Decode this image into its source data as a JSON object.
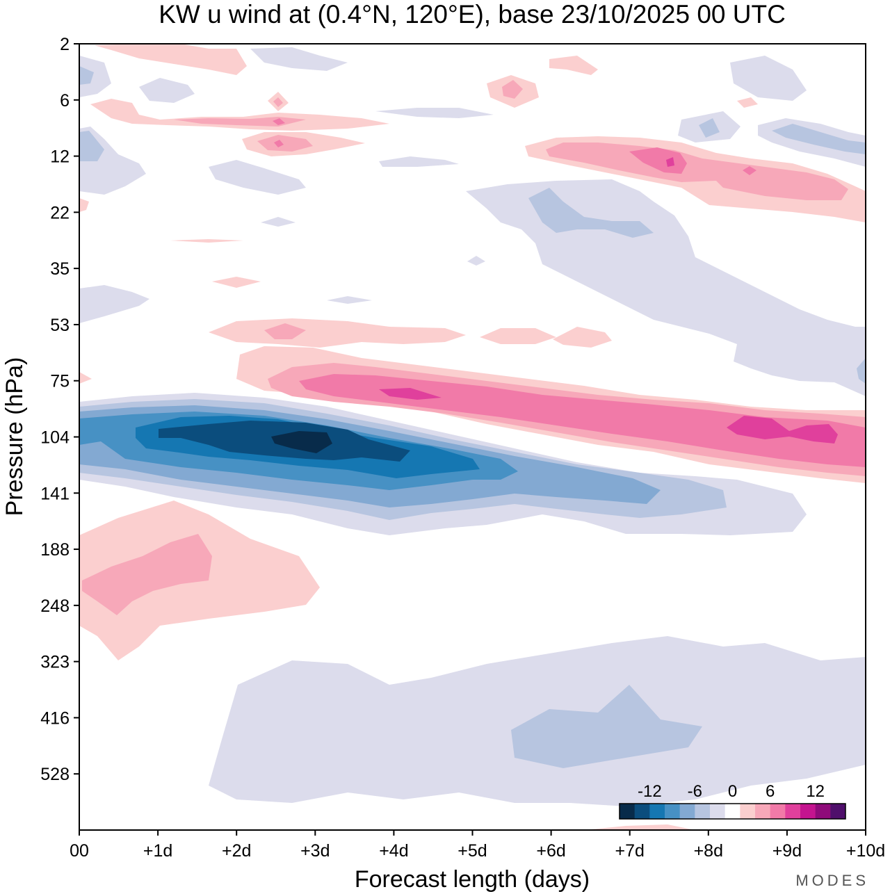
{
  "chart_data": {
    "type": "heatmap",
    "title": "KW u wind at (0.4°N, 120°E),  base 23/10/2025  00 UTC",
    "xlabel": "Forecast length (days)",
    "ylabel": "Pressure (hPa)",
    "x_tick_labels": [
      "00",
      "+1d",
      "+2d",
      "+3d",
      "+4d",
      "+5d",
      "+6d",
      "+7d",
      "+8d",
      "+9d",
      "+10d"
    ],
    "xlim": [
      0,
      10
    ],
    "y_ticks": [
      2,
      6,
      12,
      22,
      35,
      53,
      75,
      104,
      141,
      188,
      248,
      323,
      416,
      528
    ],
    "y_tick_labels": [
      "2",
      "6",
      "12",
      "22",
      "35",
      "53",
      "75",
      "104",
      "141",
      "188",
      "248",
      "323",
      "416",
      "528"
    ],
    "colorbar": {
      "tick_labels": [
        "-12",
        "-6",
        "0",
        "6",
        "12"
      ],
      "tick_values": [
        -12,
        -6,
        0,
        6,
        12
      ],
      "levels": [
        -16,
        -14,
        -12,
        -10,
        -8,
        -6,
        -4,
        -2,
        2,
        4,
        6,
        8,
        10,
        12,
        14,
        16
      ],
      "colors": [
        "#082b4a",
        "#0b4d7d",
        "#1577b2",
        "#4791c4",
        "#83a9d2",
        "#b7c5e0",
        "#dcdcec",
        "#ffffff",
        "#fbcfcf",
        "#f7a8b9",
        "#f17aa8",
        "#e0409c",
        "#c4148f",
        "#8f0b7a",
        "#4f0f6b"
      ]
    },
    "features": [
      {
        "name": "lower-stratosphere easterly core",
        "sign": "negative",
        "days": [
          0,
          8
        ],
        "pressure_hPa": [
          75,
          141
        ],
        "peak_value": -15,
        "peak_day": 3,
        "peak_pressure_hPa": 95
      },
      {
        "name": "lower-stratosphere westerly band",
        "sign": "positive",
        "days": [
          2.5,
          10
        ],
        "pressure_hPa": [
          53,
          125
        ],
        "peak_value": 11,
        "peak_day": 9.3,
        "peak_pressure_hPa": 90
      },
      {
        "name": "upper westerly band",
        "sign": "positive",
        "days": [
          5.5,
          10
        ],
        "pressure_hPa": [
          9,
          22
        ],
        "peak_value": 10,
        "peak_day": 7.5,
        "peak_pressure_hPa": 12
      },
      {
        "name": "upper-tropospheric westerly",
        "sign": "positive",
        "days": [
          0,
          3
        ],
        "pressure_hPa": [
          150,
          280
        ],
        "peak_value": 5,
        "peak_day": 1.5,
        "peak_pressure_hPa": 180
      },
      {
        "name": "tropospheric easterly",
        "sign": "negative",
        "days": [
          1.7,
          10
        ],
        "pressure_hPa": [
          290,
          540
        ],
        "peak_value": -5,
        "peak_day": 7,
        "peak_pressure_hPa": 400
      }
    ]
  },
  "branding": {
    "logo_text": "MODES"
  }
}
